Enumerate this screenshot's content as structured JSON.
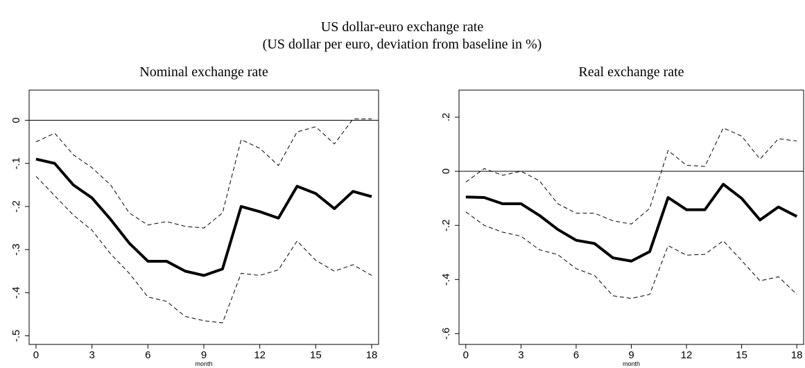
{
  "title": "US dollar-euro exchange rate",
  "subtitle": "(US dollar per euro, deviation from baseline in %)",
  "chart_data": [
    {
      "type": "line",
      "title": "Nominal exchange rate",
      "xlabel": "month",
      "x": [
        0,
        1,
        2,
        3,
        4,
        5,
        6,
        7,
        8,
        9,
        10,
        11,
        12,
        13,
        14,
        15,
        16,
        17,
        18
      ],
      "series": [
        {
          "color": "#000000",
          "line_style": "solid",
          "line_width": 4,
          "values": [
            -0.09,
            -0.1,
            -0.15,
            -0.18,
            -0.23,
            -0.285,
            -0.327,
            -0.327,
            -0.35,
            -0.36,
            -0.345,
            -0.2,
            -0.212,
            -0.227,
            -0.153,
            -0.17,
            -0.205,
            -0.165,
            -0.177
          ]
        },
        {
          "color": "#000000",
          "line_style": "dashed",
          "line_width": 1,
          "values": [
            -0.05,
            -0.03,
            -0.08,
            -0.11,
            -0.15,
            -0.215,
            -0.243,
            -0.235,
            -0.246,
            -0.25,
            -0.215,
            -0.045,
            -0.065,
            -0.105,
            -0.027,
            -0.015,
            -0.055,
            0.003,
            0.003
          ]
        },
        {
          "color": "#000000",
          "line_style": "dashed",
          "line_width": 1,
          "values": [
            -0.13,
            -0.175,
            -0.22,
            -0.255,
            -0.31,
            -0.355,
            -0.41,
            -0.42,
            -0.455,
            -0.465,
            -0.47,
            -0.355,
            -0.36,
            -0.347,
            -0.28,
            -0.325,
            -0.35,
            -0.335,
            -0.36
          ]
        }
      ],
      "reference_line": 0,
      "xlim": [
        -0.37,
        18.37
      ],
      "xticks": [
        0,
        3,
        6,
        9,
        12,
        15,
        18
      ],
      "ylim": [
        -0.52,
        0.07
      ],
      "yticks": [
        0,
        {
          "value": -0.1,
          "label": "-.1"
        },
        {
          "value": -0.2,
          "label": "-.2"
        },
        {
          "value": -0.3,
          "label": "-.3"
        },
        {
          "value": -0.4,
          "label": "-.4"
        },
        {
          "value": -0.5,
          "label": "-.5"
        }
      ],
      "grid": false
    },
    {
      "type": "line",
      "title": "Real exchange rate",
      "xlabel": "month",
      "x": [
        0,
        1,
        2,
        3,
        4,
        5,
        6,
        7,
        8,
        9,
        10,
        11,
        12,
        13,
        14,
        15,
        16,
        17,
        18
      ],
      "series": [
        {
          "color": "#000000",
          "line_style": "solid",
          "line_width": 4,
          "values": [
            -0.095,
            -0.097,
            -0.12,
            -0.12,
            -0.163,
            -0.215,
            -0.255,
            -0.267,
            -0.32,
            -0.332,
            -0.297,
            -0.097,
            -0.142,
            -0.142,
            -0.048,
            -0.1,
            -0.18,
            -0.132,
            -0.167
          ]
        },
        {
          "color": "#000000",
          "line_style": "dashed",
          "line_width": 1,
          "values": [
            -0.04,
            0.01,
            -0.015,
            0.0,
            -0.035,
            -0.12,
            -0.155,
            -0.155,
            -0.183,
            -0.195,
            -0.137,
            0.077,
            0.022,
            0.018,
            0.16,
            0.13,
            0.045,
            0.12,
            0.112
          ]
        },
        {
          "color": "#000000",
          "line_style": "dashed",
          "line_width": 1,
          "values": [
            -0.15,
            -0.2,
            -0.225,
            -0.24,
            -0.29,
            -0.308,
            -0.36,
            -0.385,
            -0.46,
            -0.47,
            -0.455,
            -0.275,
            -0.31,
            -0.307,
            -0.257,
            -0.33,
            -0.405,
            -0.39,
            -0.455
          ]
        }
      ],
      "reference_line": 0,
      "xlim": [
        -0.37,
        18.37
      ],
      "xticks": [
        0,
        3,
        6,
        9,
        12,
        15,
        18
      ],
      "ylim": [
        -0.64,
        0.3
      ],
      "yticks": [
        {
          "value": 0.2,
          "label": ".2"
        },
        0,
        {
          "value": -0.2,
          "label": "-.2"
        },
        {
          "value": -0.4,
          "label": "-.4"
        },
        {
          "value": -0.6,
          "label": "-.6"
        }
      ],
      "grid": false
    }
  ]
}
